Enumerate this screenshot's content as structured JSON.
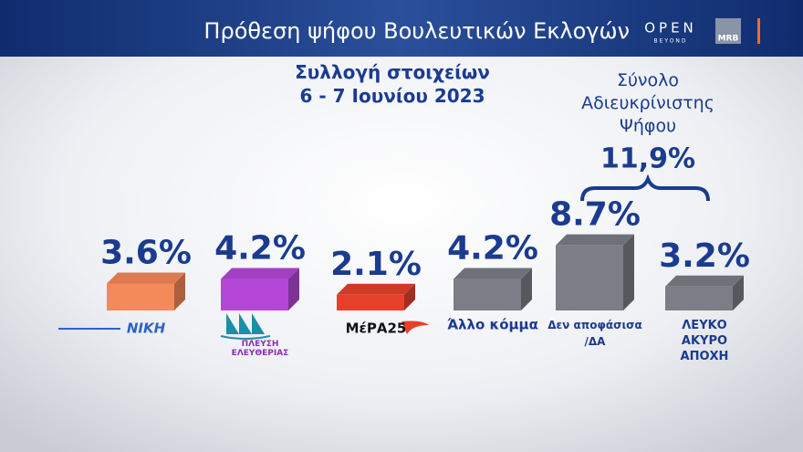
{
  "chart_data": {
    "type": "bar",
    "title": "Πρόθεση ψήφου Βουλευτικών Εκλογών",
    "subtitle": "Συλλογή στοιχείων\n6 - 7 Ιουνίου 2023",
    "categories": [
      "ΝΙΚΗ",
      "ΠΛΕΥΣΗ\nΕΛΕΥΘΕΡΙΑΣ",
      "ΜέΡΑ25",
      "Άλλο κόμμα",
      "Δεν αποφάσισα\n/ΔΑ",
      "ΛΕΥΚΟ\nΑΚΥΡΟ\nΑΠΟΧΗ"
    ],
    "values": [
      3.6,
      4.2,
      2.1,
      4.2,
      8.7,
      3.2
    ],
    "value_labels": [
      "3.6%",
      "4.2%",
      "2.1%",
      "4.2%",
      "8.7%",
      "3.2%"
    ],
    "colors": [
      "#f4895a",
      "#b446d8",
      "#e6402b",
      "#7b7e86",
      "#7b7e86",
      "#7b7e86"
    ],
    "annotation": {
      "text": "Σύνολο\nΑδιευκρίνιστης\nΨήφου",
      "value": 11.9,
      "value_label": "11,9%"
    },
    "branding": {
      "logo": "OPEN",
      "logo_sub": "BEYOND",
      "pollster": "MRB"
    }
  }
}
